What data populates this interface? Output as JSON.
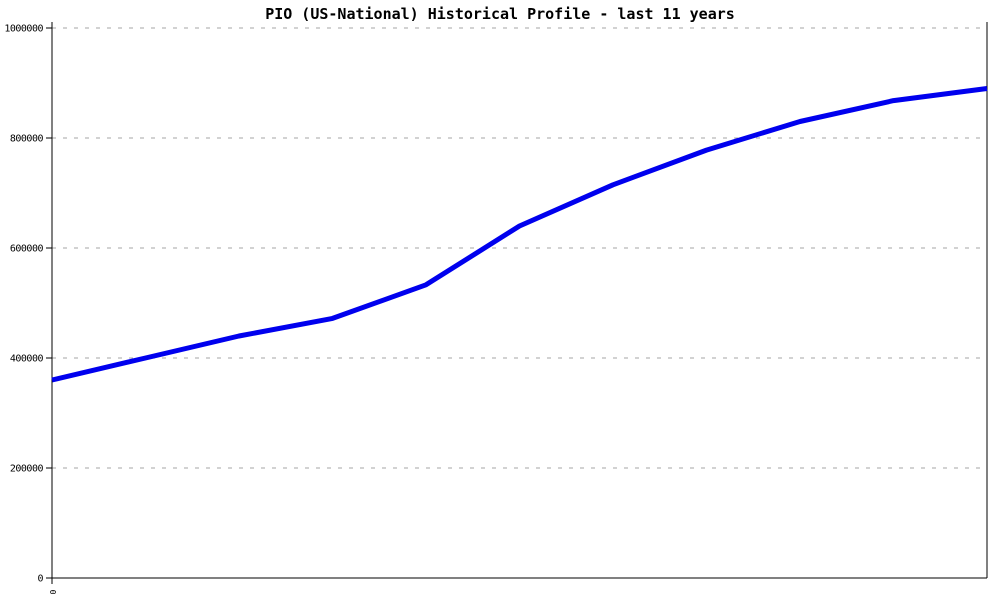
{
  "chart_data": {
    "type": "line",
    "title": "PIO (US-National) Historical Profile - last 11 years",
    "xlabel": "",
    "ylabel": "",
    "ylim": [
      0,
      1000000
    ],
    "y_ticks": [
      0,
      200000,
      400000,
      600000,
      800000,
      1000000
    ],
    "x_tick_labels": [
      "0"
    ],
    "x_index": [
      0,
      1,
      2,
      3,
      4,
      5,
      6,
      7,
      8,
      9,
      10
    ],
    "series": [
      {
        "values": [
          360000,
          400000,
          440000,
          472000,
          533000,
          640000,
          715000,
          778000,
          830000,
          868000,
          890000
        ],
        "color": "#0000EE",
        "line_width": 5
      }
    ],
    "grid": "horizontal-dashed",
    "legend": "none",
    "grid_color": "#A6A6A6",
    "axis_color": "#000000",
    "background": "#FFFFFF"
  }
}
